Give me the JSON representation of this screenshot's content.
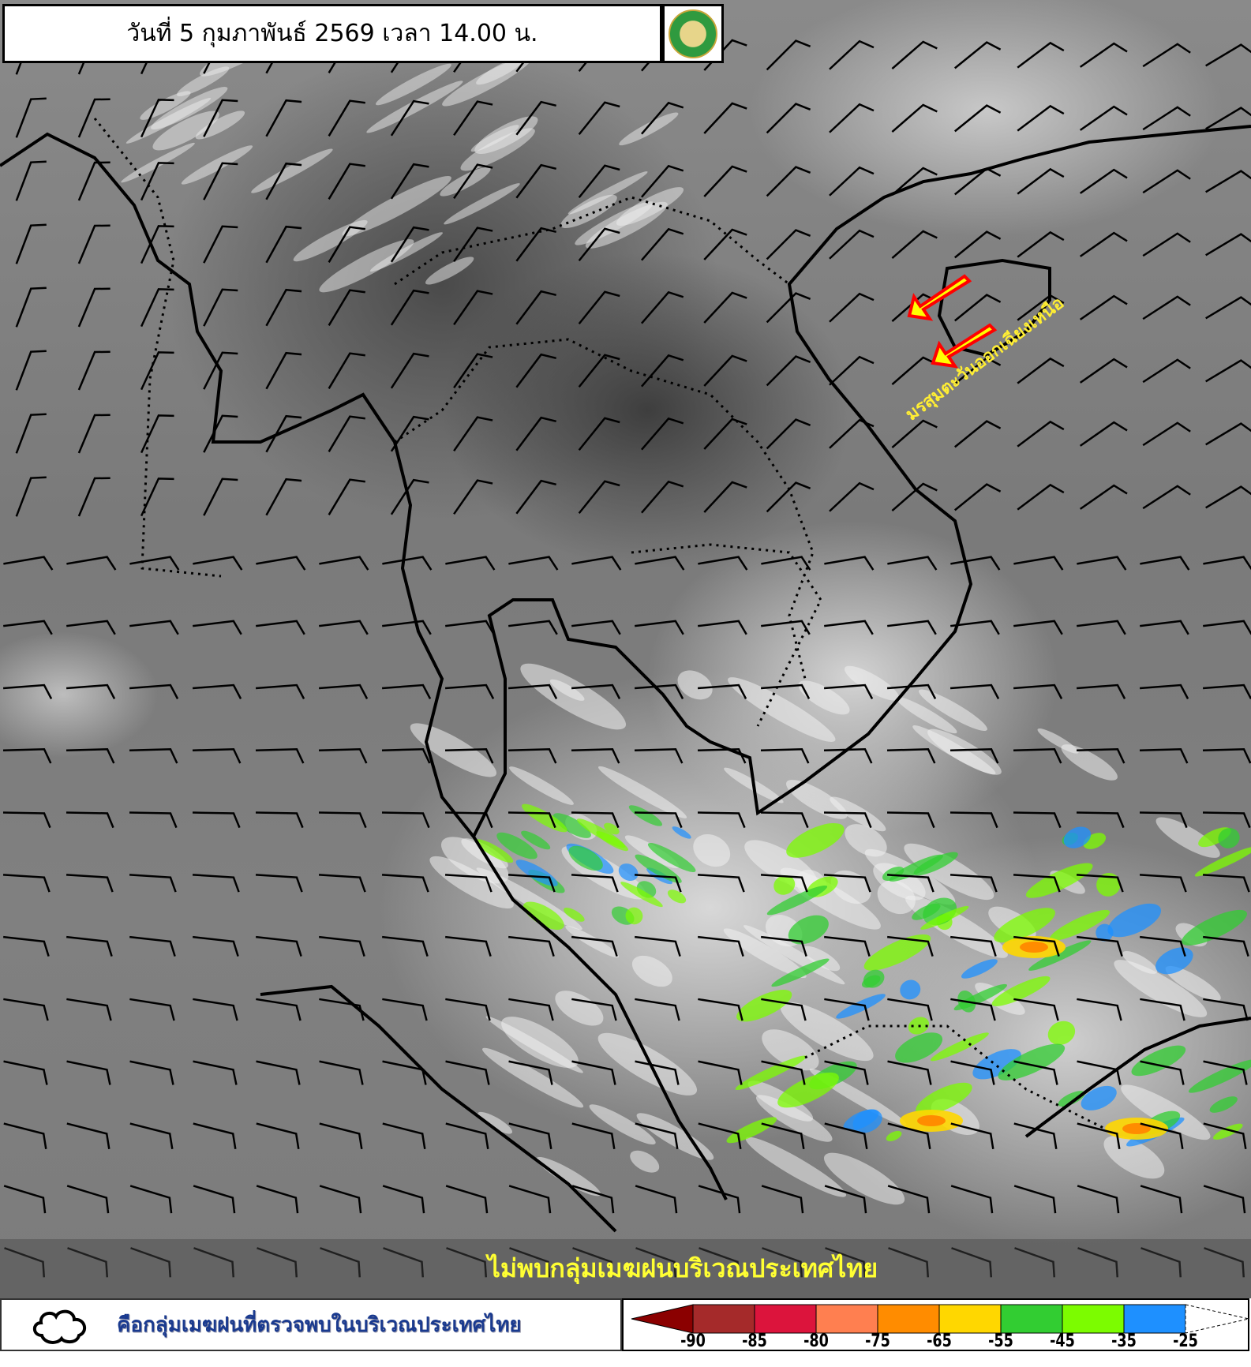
{
  "header": {
    "title": "วันที่ 5 กุมภาพันธ์ 2569 เวลา 14.00 น.",
    "logo_icon": "thai-meteorological-department-logo"
  },
  "map": {
    "annotation": "มรสุมตะวันออกเฉียงเหนือ",
    "arrow_color": "#ffff00",
    "arrow_outline": "#ff0000",
    "status_message": "ไม่พบกลุ่มเมฆฝนบริเวณประเทศไทย"
  },
  "legend": {
    "cloud_icon": "cloud-outline-icon",
    "cloud_description": "คือกลุ่มเมฆฝนที่ตรวจพบในบริเวณประเทศไทย",
    "colorbar": {
      "colors": [
        "#8b0000",
        "#a52a2a",
        "#dc143c",
        "#ff7f50",
        "#ff8c00",
        "#ffd700",
        "#32cd32",
        "#7cfc00",
        "#1e90ff",
        "#ffffff"
      ],
      "labels": [
        "-90",
        "-85",
        "-80",
        "-75",
        "-65",
        "-55",
        "-45",
        "-35",
        "-25"
      ]
    }
  }
}
